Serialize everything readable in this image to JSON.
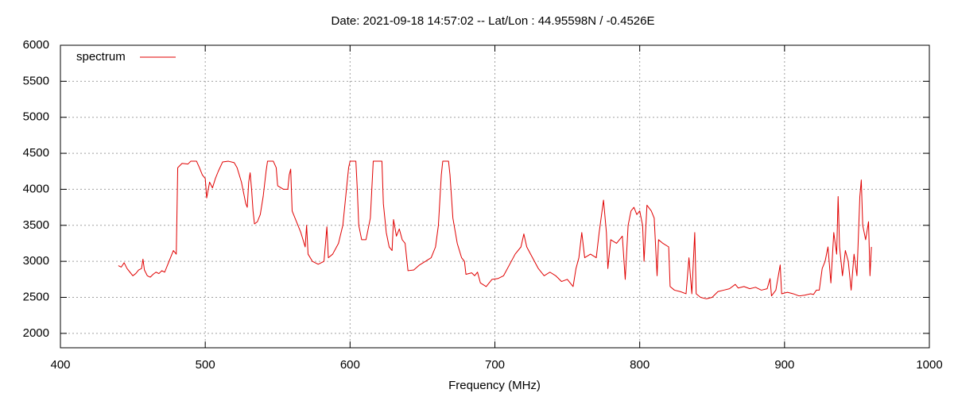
{
  "chart_data": {
    "type": "line",
    "title": "Date: 2021-09-18 14:57:02  --  Lat/Lon : 44.95598N / -0.4526E",
    "x_label": "Frequency (MHz)",
    "xlim": [
      400,
      1000
    ],
    "xticks": [
      400,
      500,
      600,
      700,
      800,
      900,
      1000
    ],
    "ylim": [
      1800,
      6000
    ],
    "yticks": [
      2000,
      2500,
      3000,
      3500,
      4000,
      4500,
      5000,
      5500,
      6000
    ],
    "grid": true,
    "legend": "top-left",
    "x": [
      440,
      442,
      444,
      446,
      448,
      450,
      452,
      454,
      456,
      457,
      458,
      460,
      462,
      464,
      466,
      468,
      470,
      472,
      474,
      476,
      478,
      480,
      481,
      484,
      488,
      490,
      494,
      496,
      498,
      500,
      501,
      503,
      505,
      507,
      509,
      512,
      516,
      520,
      522,
      525,
      528,
      529,
      530,
      531,
      532,
      533,
      534,
      536,
      538,
      540,
      542,
      543,
      547,
      549,
      550,
      554,
      557,
      558,
      559,
      560,
      562,
      566,
      569,
      570,
      571,
      574,
      578,
      582,
      584,
      585,
      588,
      592,
      595,
      597,
      599,
      600,
      604,
      605,
      606,
      608,
      611,
      614,
      616,
      622,
      623,
      625,
      627,
      629,
      630,
      632,
      634,
      636,
      638,
      640,
      644,
      648,
      652,
      656,
      659,
      661,
      663,
      664,
      668,
      669,
      671,
      674,
      677,
      679,
      680,
      684,
      686,
      688,
      690,
      694,
      698,
      702,
      706,
      710,
      714,
      718,
      720,
      722,
      726,
      730,
      734,
      738,
      742,
      746,
      750,
      754,
      756,
      758,
      760,
      762,
      766,
      770,
      772,
      774,
      775,
      777,
      778,
      780,
      784,
      788,
      790,
      792,
      794,
      796,
      798,
      800,
      802,
      803,
      805,
      808,
      810,
      811,
      812,
      813,
      816,
      820,
      821,
      824,
      828,
      832,
      834,
      836,
      838,
      839,
      842,
      846,
      850,
      854,
      858,
      862,
      866,
      868,
      872,
      876,
      880,
      884,
      888,
      890,
      891,
      894,
      897,
      898,
      902,
      906,
      910,
      914,
      918,
      920,
      922,
      924,
      926,
      928,
      930,
      932,
      934,
      936,
      937,
      938,
      940,
      942,
      944,
      946,
      948,
      950,
      952,
      953,
      954,
      956,
      958,
      959,
      960
    ],
    "series": [
      {
        "name": "spectrum",
        "color": "#e00000",
        "values": [
          2940,
          2920,
          2980,
          2900,
          2850,
          2800,
          2830,
          2880,
          2900,
          3030,
          2880,
          2800,
          2780,
          2820,
          2850,
          2830,
          2870,
          2850,
          2950,
          3050,
          3150,
          3100,
          4300,
          4360,
          4350,
          4390,
          4390,
          4300,
          4200,
          4150,
          3880,
          4100,
          4020,
          4150,
          4250,
          4380,
          4390,
          4370,
          4300,
          4100,
          3800,
          3750,
          4100,
          4230,
          4000,
          3700,
          3520,
          3550,
          3650,
          3900,
          4250,
          4390,
          4390,
          4300,
          4050,
          4000,
          4000,
          4200,
          4280,
          3700,
          3600,
          3400,
          3200,
          3500,
          3100,
          3000,
          2960,
          3000,
          3480,
          3050,
          3100,
          3250,
          3500,
          3900,
          4300,
          4390,
          4390,
          4000,
          3500,
          3300,
          3300,
          3600,
          4390,
          4390,
          3800,
          3400,
          3200,
          3150,
          3580,
          3350,
          3450,
          3300,
          3250,
          2870,
          2880,
          2950,
          3000,
          3050,
          3200,
          3500,
          4200,
          4390,
          4390,
          4200,
          3600,
          3250,
          3050,
          3000,
          2820,
          2840,
          2800,
          2850,
          2700,
          2650,
          2750,
          2760,
          2800,
          2950,
          3100,
          3200,
          3380,
          3200,
          3050,
          2900,
          2800,
          2850,
          2800,
          2720,
          2750,
          2650,
          2900,
          3050,
          3400,
          3050,
          3100,
          3050,
          3400,
          3700,
          3850,
          3400,
          2900,
          3300,
          3250,
          3350,
          2750,
          3500,
          3700,
          3750,
          3650,
          3700,
          3500,
          3000,
          3780,
          3700,
          3600,
          3200,
          2800,
          3300,
          3250,
          3200,
          2650,
          2600,
          2580,
          2550,
          3050,
          2550,
          3400,
          2550,
          2500,
          2480,
          2500,
          2580,
          2600,
          2620,
          2680,
          2630,
          2650,
          2620,
          2640,
          2600,
          2620,
          2760,
          2520,
          2600,
          2950,
          2550,
          2570,
          2550,
          2520,
          2530,
          2550,
          2540,
          2600,
          2600,
          2900,
          3000,
          3200,
          2700,
          3400,
          3100,
          3900,
          3200,
          2800,
          3150,
          3000,
          2600,
          3100,
          2800,
          3900,
          4130,
          3500,
          3300,
          3550,
          2800,
          3200
        ]
      }
    ]
  }
}
